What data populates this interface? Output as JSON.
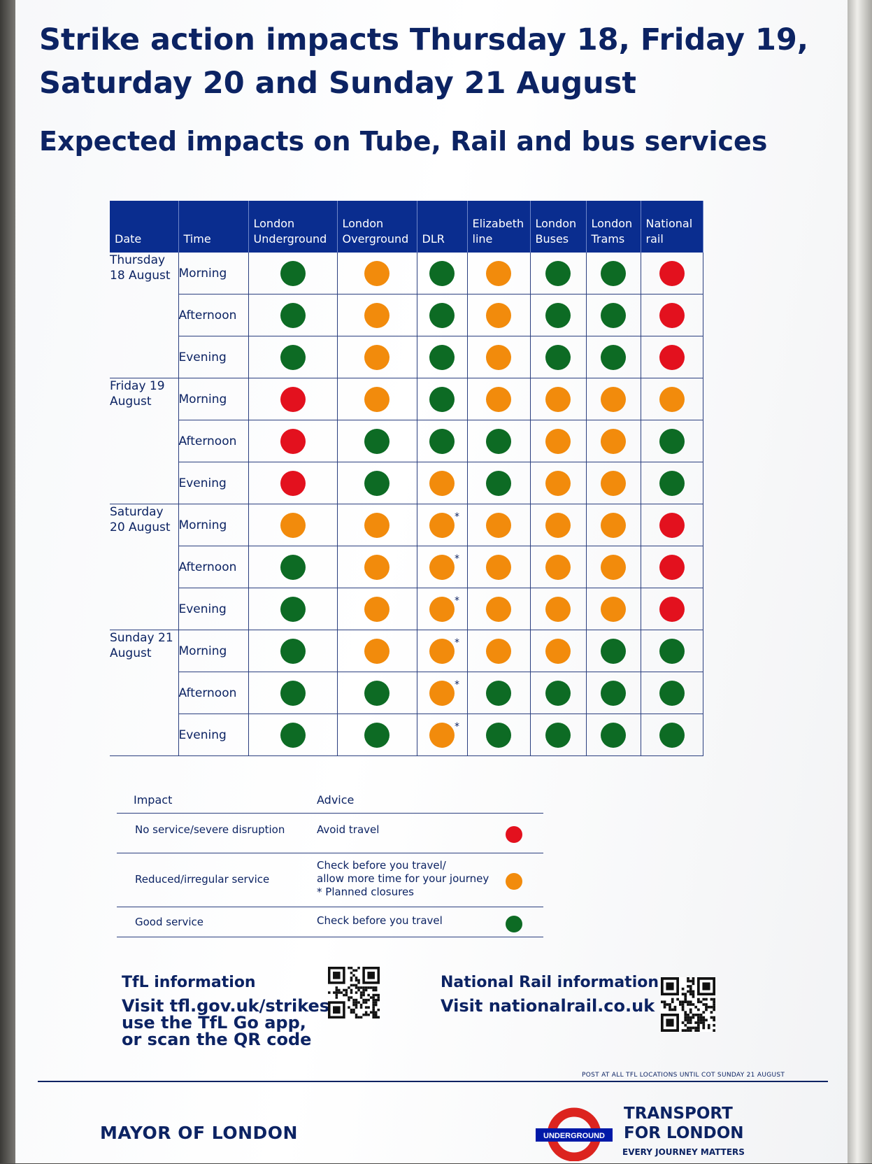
{
  "poster": {
    "title": "Strike action impacts Thursday 18, Friday 19, Saturday 20 and Sunday 21 August",
    "subtitle": "Expected impacts on Tube, Rail and bus services"
  },
  "colors": {
    "red": "#e3111e",
    "orange": "#f28b0c",
    "green": "#0d6b24",
    "navy": "#0a2d8f",
    "text": "#0c2363"
  },
  "table": {
    "headers": [
      "Date",
      "Time",
      "London Underground",
      "London Overground",
      "DLR",
      "Elizabeth line",
      "London Buses",
      "London Trams",
      "National rail"
    ],
    "rows": [
      {
        "date": "Thursday 18 August",
        "time": "Morning",
        "status": [
          "green",
          "orange",
          "green",
          "orange",
          "green",
          "green",
          "red"
        ]
      },
      {
        "date": "",
        "time": "Afternoon",
        "status": [
          "green",
          "orange",
          "green",
          "orange",
          "green",
          "green",
          "red"
        ]
      },
      {
        "date": "",
        "time": "Evening",
        "status": [
          "green",
          "orange",
          "green",
          "orange",
          "green",
          "green",
          "red"
        ]
      },
      {
        "date": "Friday 19 August",
        "time": "Morning",
        "status": [
          "red",
          "orange",
          "green",
          "orange",
          "orange",
          "orange",
          "orange"
        ]
      },
      {
        "date": "",
        "time": "Afternoon",
        "status": [
          "red",
          "green",
          "green",
          "green",
          "orange",
          "orange",
          "green"
        ]
      },
      {
        "date": "",
        "time": "Evening",
        "status": [
          "red",
          "green",
          "orange",
          "green",
          "orange",
          "orange",
          "green"
        ]
      },
      {
        "date": "Saturday 20 August",
        "time": "Morning",
        "status": [
          "orange",
          "orange",
          "orange*",
          "orange",
          "orange",
          "orange",
          "red"
        ]
      },
      {
        "date": "",
        "time": "Afternoon",
        "status": [
          "green",
          "orange",
          "orange*",
          "orange",
          "orange",
          "orange",
          "red"
        ]
      },
      {
        "date": "",
        "time": "Evening",
        "status": [
          "green",
          "orange",
          "orange*",
          "orange",
          "orange",
          "orange",
          "red"
        ]
      },
      {
        "date": "Sunday 21 August",
        "time": "Morning",
        "status": [
          "green",
          "orange",
          "orange*",
          "orange",
          "orange",
          "green",
          "green"
        ]
      },
      {
        "date": "",
        "time": "Afternoon",
        "status": [
          "green",
          "green",
          "orange*",
          "green",
          "green",
          "green",
          "green"
        ]
      },
      {
        "date": "",
        "time": "Evening",
        "status": [
          "green",
          "green",
          "orange*",
          "green",
          "green",
          "green",
          "green"
        ]
      }
    ]
  },
  "legend": {
    "impact_header": "Impact",
    "advice_header": "Advice",
    "items": [
      {
        "impact": "No service/severe disruption",
        "advice": [
          "Avoid travel"
        ],
        "color": "red"
      },
      {
        "impact": "Reduced/irregular service",
        "advice": [
          "Check before you travel/",
          "allow more time for your journey",
          "* Planned closures"
        ],
        "color": "orange"
      },
      {
        "impact": "Good service",
        "advice": [
          "Check before you travel"
        ],
        "color": "green"
      }
    ]
  },
  "info": {
    "tfl_title": "TfL information",
    "tfl_text": [
      "Visit tfl.gov.uk/strikes,",
      "use the TfL Go app,",
      "or scan the QR code"
    ],
    "rail_title": "National Rail information",
    "rail_text": "Visit nationalrail.co.uk"
  },
  "footer": {
    "post_note": "POST AT ALL TFL LOCATIONS UNTIL COT SUNDAY 21 AUGUST",
    "mayor": "MAYOR OF LONDON",
    "roundel_text": "UNDERGROUND",
    "tfl_name": [
      "TRANSPORT",
      "FOR LONDON"
    ],
    "tagline": "EVERY JOURNEY MATTERS"
  }
}
